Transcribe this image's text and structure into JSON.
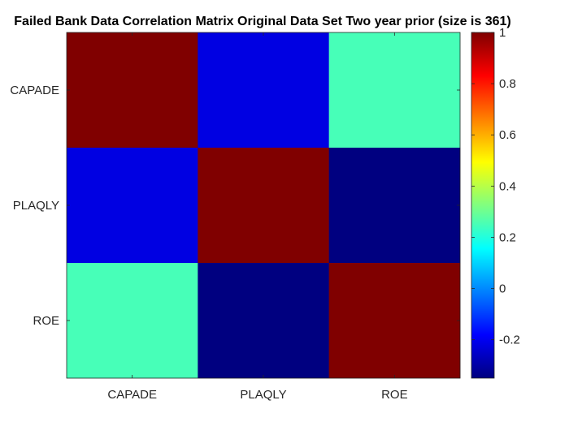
{
  "chart_data": {
    "type": "heatmap",
    "title": "Failed Bank Data Correlation Matrix Original Data Set Two year prior (size is 361)",
    "xlabel": "",
    "ylabel": "",
    "x_categories": [
      "CAPADE",
      "PLAQLY",
      "ROE"
    ],
    "y_categories": [
      "CAPADE",
      "PLAQLY",
      "ROE"
    ],
    "matrix": [
      [
        1.0,
        -0.22,
        0.25
      ],
      [
        -0.22,
        1.0,
        -0.35
      ],
      [
        0.25,
        -0.35,
        1.0
      ]
    ],
    "colormap": "jet",
    "clim": [
      -0.35,
      1.0
    ],
    "colorbar": {
      "location": "right",
      "ticks": [
        1,
        0.8,
        0.6,
        0.4,
        0.2,
        0,
        -0.2
      ],
      "tick_labels": [
        "1",
        "0.8",
        "0.6",
        "0.4",
        "0.2",
        "0",
        "-0.2"
      ]
    },
    "grid": false
  }
}
